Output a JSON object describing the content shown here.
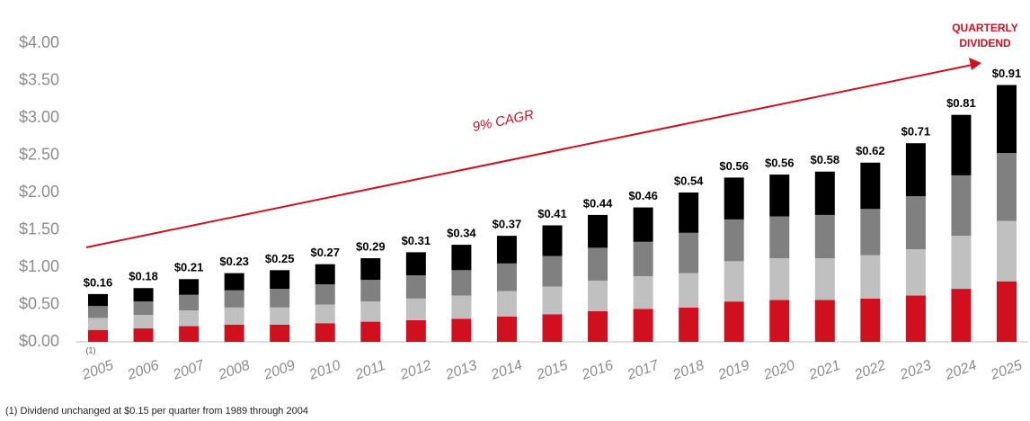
{
  "chart_data": {
    "type": "stacked_bar",
    "categories": [
      "2005",
      "2006",
      "2007",
      "2008",
      "2009",
      "2010",
      "2011",
      "2012",
      "2013",
      "2014",
      "2015",
      "2016",
      "2017",
      "2018",
      "2019",
      "2020",
      "2021",
      "2022",
      "2023",
      "2024",
      "2025"
    ],
    "series": [
      {
        "color": "#d0101f",
        "values": [
          0.16,
          0.18,
          0.21,
          0.23,
          0.23,
          0.25,
          0.27,
          0.29,
          0.31,
          0.34,
          0.37,
          0.41,
          0.44,
          0.46,
          0.54,
          0.56,
          0.56,
          0.58,
          0.62,
          0.71,
          0.81
        ]
      },
      {
        "color": "#c0c0c0",
        "values": [
          0.16,
          0.18,
          0.21,
          0.23,
          0.23,
          0.25,
          0.27,
          0.29,
          0.31,
          0.34,
          0.37,
          0.41,
          0.44,
          0.46,
          0.54,
          0.56,
          0.56,
          0.58,
          0.62,
          0.71,
          0.81
        ]
      },
      {
        "color": "#808080",
        "values": [
          0.16,
          0.18,
          0.21,
          0.23,
          0.25,
          0.27,
          0.29,
          0.31,
          0.34,
          0.37,
          0.41,
          0.44,
          0.46,
          0.54,
          0.56,
          0.56,
          0.58,
          0.62,
          0.71,
          0.81,
          0.91
        ]
      },
      {
        "color": "#000000",
        "values": [
          0.16,
          0.18,
          0.21,
          0.23,
          0.25,
          0.27,
          0.29,
          0.31,
          0.34,
          0.37,
          0.41,
          0.44,
          0.46,
          0.54,
          0.56,
          0.56,
          0.58,
          0.62,
          0.71,
          0.81,
          0.91
        ],
        "value_labels": [
          "$0.16",
          "$0.18",
          "$0.21",
          "$0.23",
          "$0.25",
          "$0.27",
          "$0.29",
          "$0.31",
          "$0.34",
          "$0.37",
          "$0.41",
          "$0.44",
          "$0.46",
          "$0.54",
          "$0.56",
          "$0.56",
          "$0.58",
          "$0.62",
          "$0.71",
          "$0.81",
          "$0.91"
        ]
      }
    ],
    "ylim": [
      0,
      4
    ],
    "yticks": [
      {
        "value": 0,
        "label": "$0.00"
      },
      {
        "value": 0.5,
        "label": "$0.50"
      },
      {
        "value": 1,
        "label": "$1.00"
      },
      {
        "value": 1.5,
        "label": "$1.50"
      },
      {
        "value": 2,
        "label": "$2.00"
      },
      {
        "value": 2.5,
        "label": "$2.50"
      },
      {
        "value": 3,
        "label": "$3.00"
      },
      {
        "value": 3.5,
        "label": "$3.50"
      },
      {
        "value": 4,
        "label": "$4.00"
      }
    ],
    "annotations": {
      "cagr": "9% CAGR",
      "quarterly_dividend": [
        "QUARTERLY",
        "DIVIDEND"
      ],
      "footnote_marker": "(1)",
      "footnote": "(1) Dividend unchanged at $0.15 per quarter from 1989 through 2004"
    }
  }
}
